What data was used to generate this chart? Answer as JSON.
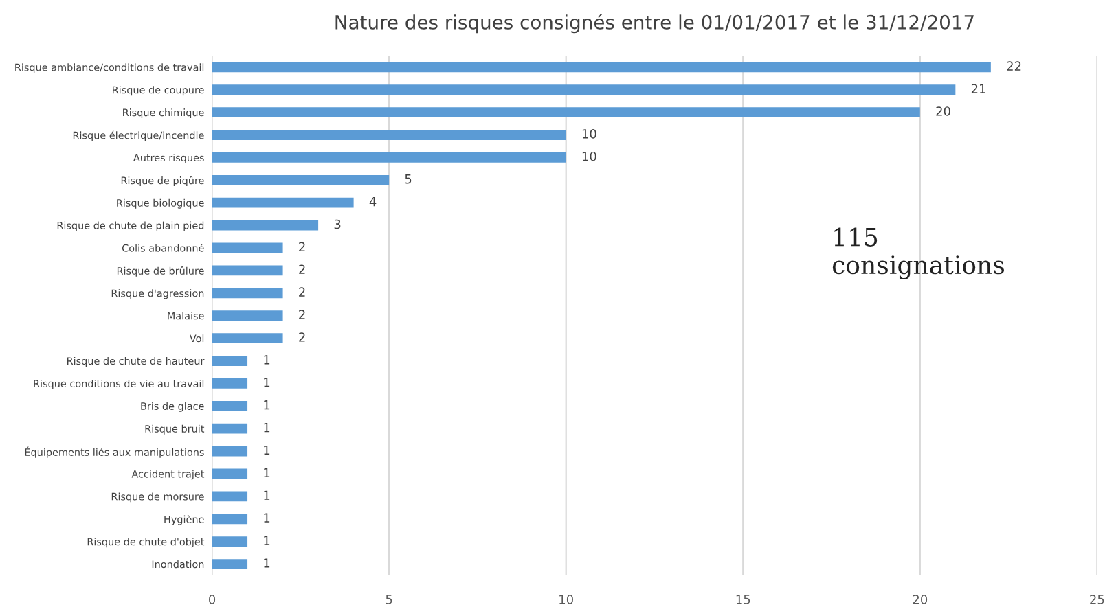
{
  "chart_data": {
    "type": "bar",
    "orientation": "horizontal",
    "title": "Nature des risques consignés entre le 01/01/2017 et le 31/12/2017",
    "categories": [
      "Risque ambiance/conditions de travail",
      "Risque de coupure",
      "Risque chimique",
      "Risque électrique/incendie",
      "Autres risques",
      "Risque de piqûre",
      "Risque biologique",
      "Risque de chute de plain pied",
      "Colis abandonné",
      "Risque de brûlure",
      "Risque d'agression",
      "Malaise",
      "Vol",
      "Risque de chute de hauteur",
      "Risque conditions de vie au travail",
      "Bris de glace",
      "Risque bruit",
      "Équipements liés aux manipulations",
      "Accident trajet",
      "Risque de morsure",
      "Hygiène",
      "Risque de chute d'objet",
      "Inondation"
    ],
    "values": [
      22,
      21,
      20,
      10,
      10,
      5,
      4,
      3,
      2,
      2,
      2,
      2,
      2,
      1,
      1,
      1,
      1,
      1,
      1,
      1,
      1,
      1,
      1
    ],
    "color": "#5b9bd5",
    "xlim": [
      0,
      25
    ],
    "xticks": [
      0,
      5,
      10,
      15,
      20,
      25
    ],
    "grid": "x",
    "data_labels": true,
    "annotations": [
      "115\nconsignations"
    ]
  }
}
